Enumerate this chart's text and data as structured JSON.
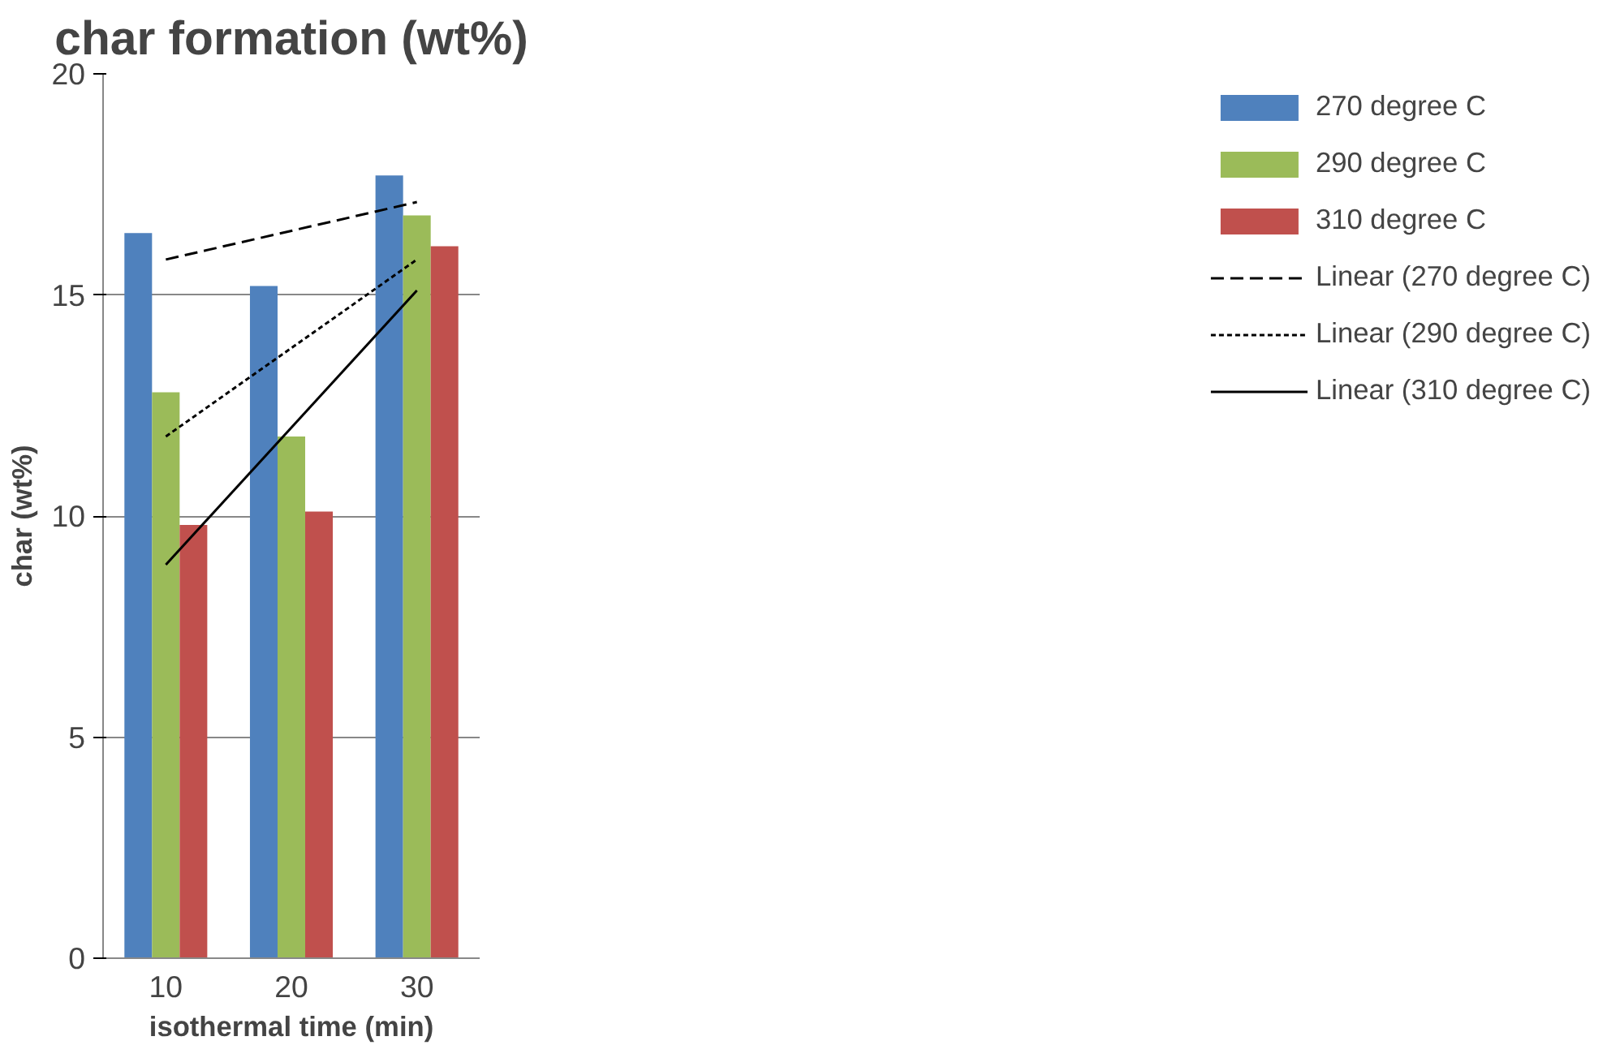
{
  "chart_data": {
    "type": "bar",
    "title": "char formation (wt%)",
    "xlabel": "isothermal time (min)",
    "ylabel": "char (wt%)",
    "categories": [
      "10",
      "20",
      "30"
    ],
    "series": [
      {
        "name": "270 degree C",
        "color": "#4f81bd",
        "values": [
          16.4,
          15.2,
          17.7
        ]
      },
      {
        "name": "290 degree C",
        "color": "#9bbb59",
        "values": [
          12.8,
          11.8,
          16.8
        ]
      },
      {
        "name": "310 degree C",
        "color": "#c0504d",
        "values": [
          9.8,
          10.1,
          16.1
        ]
      },
      {
        "name": "Linear (270 degree C)",
        "type": "line",
        "color": "#000000",
        "line_style": "dashed",
        "x": [
          "10",
          "30"
        ],
        "values": [
          15.8,
          17.1
        ]
      },
      {
        "name": "Linear (290 degree C)",
        "type": "line",
        "color": "#000000",
        "line_style": "dotted",
        "x": [
          "10",
          "30"
        ],
        "values": [
          11.8,
          15.8
        ]
      },
      {
        "name": "Linear (310 degree C)",
        "type": "line",
        "color": "#000000",
        "line_style": "solid",
        "x": [
          "10",
          "30"
        ],
        "values": [
          8.9,
          15.1
        ]
      }
    ],
    "ylim": [
      0,
      20
    ],
    "yticks": [
      0,
      5,
      10,
      15,
      20
    ],
    "grid": "y",
    "legend": "right"
  }
}
